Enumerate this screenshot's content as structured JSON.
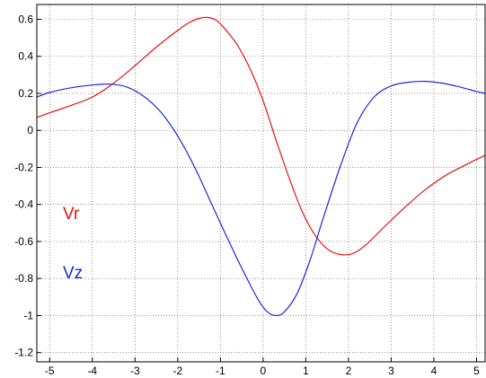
{
  "chart_data": {
    "type": "line",
    "xlim": [
      -5.3,
      5.2
    ],
    "ylim": [
      -1.25,
      0.68
    ],
    "x_ticks": [
      -5,
      -4,
      -3,
      -2,
      -1,
      0,
      1,
      2,
      3,
      4,
      5
    ],
    "y_ticks": [
      0.6,
      0.4,
      0.2,
      0,
      -0.2,
      -0.4,
      -0.6,
      -0.8,
      -1,
      -1.2
    ],
    "x_tick_labels": [
      "-5",
      "-4",
      "-3",
      "-2",
      "-1",
      "0",
      "1",
      "2",
      "3",
      "4",
      "5"
    ],
    "y_tick_labels": [
      "0.6",
      "0.4",
      "0.2",
      "0",
      "-0.2",
      "-0.4",
      "-0.6",
      "-0.8",
      "-1",
      "-1.2"
    ],
    "grid": "dotted",
    "series": [
      {
        "name": "Vr",
        "color": "#e8120f",
        "points": [
          [
            -5.3,
            0.07
          ],
          [
            -5.0,
            0.095
          ],
          [
            -4.5,
            0.135
          ],
          [
            -4.0,
            0.18
          ],
          [
            -3.5,
            0.255
          ],
          [
            -3.0,
            0.35
          ],
          [
            -2.5,
            0.45
          ],
          [
            -2.0,
            0.54
          ],
          [
            -1.75,
            0.58
          ],
          [
            -1.5,
            0.605
          ],
          [
            -1.3,
            0.61
          ],
          [
            -1.1,
            0.595
          ],
          [
            -0.9,
            0.55
          ],
          [
            -0.6,
            0.46
          ],
          [
            -0.3,
            0.33
          ],
          [
            0.0,
            0.16
          ],
          [
            0.3,
            -0.05
          ],
          [
            0.6,
            -0.25
          ],
          [
            0.9,
            -0.43
          ],
          [
            1.2,
            -0.56
          ],
          [
            1.5,
            -0.64
          ],
          [
            1.8,
            -0.67
          ],
          [
            2.1,
            -0.665
          ],
          [
            2.4,
            -0.62
          ],
          [
            2.8,
            -0.53
          ],
          [
            3.3,
            -0.42
          ],
          [
            3.8,
            -0.32
          ],
          [
            4.3,
            -0.24
          ],
          [
            4.8,
            -0.18
          ],
          [
            5.2,
            -0.135
          ]
        ]
      },
      {
        "name": "Vz",
        "color": "#1a2ad4",
        "points": [
          [
            -5.3,
            0.18
          ],
          [
            -5.0,
            0.205
          ],
          [
            -4.5,
            0.23
          ],
          [
            -4.0,
            0.245
          ],
          [
            -3.6,
            0.25
          ],
          [
            -3.2,
            0.235
          ],
          [
            -2.8,
            0.185
          ],
          [
            -2.4,
            0.1
          ],
          [
            -2.0,
            -0.03
          ],
          [
            -1.6,
            -0.2
          ],
          [
            -1.2,
            -0.4
          ],
          [
            -0.8,
            -0.6
          ],
          [
            -0.4,
            -0.79
          ],
          [
            -0.1,
            -0.92
          ],
          [
            0.1,
            -0.98
          ],
          [
            0.3,
            -1.0
          ],
          [
            0.5,
            -0.98
          ],
          [
            0.8,
            -0.88
          ],
          [
            1.1,
            -0.7
          ],
          [
            1.4,
            -0.48
          ],
          [
            1.8,
            -0.2
          ],
          [
            2.2,
            0.04
          ],
          [
            2.6,
            0.18
          ],
          [
            3.0,
            0.24
          ],
          [
            3.4,
            0.26
          ],
          [
            3.8,
            0.265
          ],
          [
            4.2,
            0.255
          ],
          [
            4.6,
            0.235
          ],
          [
            5.0,
            0.21
          ],
          [
            5.2,
            0.2
          ]
        ]
      }
    ]
  }
}
